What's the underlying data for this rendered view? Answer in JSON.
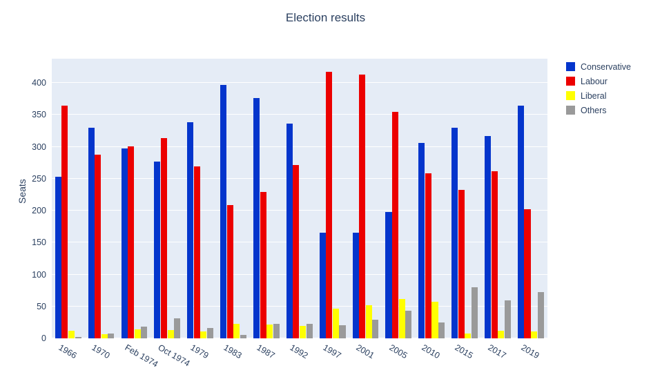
{
  "title": "Election results",
  "chart_data": {
    "type": "bar",
    "title": "Election results",
    "xlabel": "",
    "ylabel": "Seats",
    "categories": [
      "1966",
      "1970",
      "Feb 1974",
      "Oct 1974",
      "1979",
      "1983",
      "1987",
      "1992",
      "1997",
      "2001",
      "2005",
      "2010",
      "2015",
      "2017",
      "2019"
    ],
    "series": [
      {
        "name": "Conservative",
        "color": "#0435cc",
        "values": [
          253,
          330,
          297,
          277,
          339,
          397,
          376,
          336,
          165,
          166,
          198,
          306,
          330,
          317,
          365
        ]
      },
      {
        "name": "Labour",
        "color": "#ec0000",
        "values": [
          364,
          288,
          301,
          314,
          269,
          209,
          229,
          271,
          418,
          413,
          355,
          258,
          232,
          262,
          202
        ]
      },
      {
        "name": "Liberal",
        "color": "#ffff00",
        "values": [
          12,
          6,
          14,
          13,
          11,
          23,
          22,
          20,
          46,
          52,
          62,
          57,
          8,
          12,
          11
        ]
      },
      {
        "name": "Others",
        "color": "#9a9a9a",
        "values": [
          2,
          8,
          18,
          31,
          16,
          5,
          23,
          23,
          21,
          29,
          43,
          25,
          80,
          59,
          72
        ]
      }
    ],
    "yticks": [
      0,
      50,
      100,
      150,
      200,
      250,
      300,
      350,
      400
    ],
    "ylim": [
      0,
      438
    ],
    "grid": true,
    "legend_position": "right",
    "plot_bgcolor": "#e5ecf6",
    "grid_color": "#ffffff",
    "text_color": "#2a3f5f",
    "xtick_angle": 30
  }
}
